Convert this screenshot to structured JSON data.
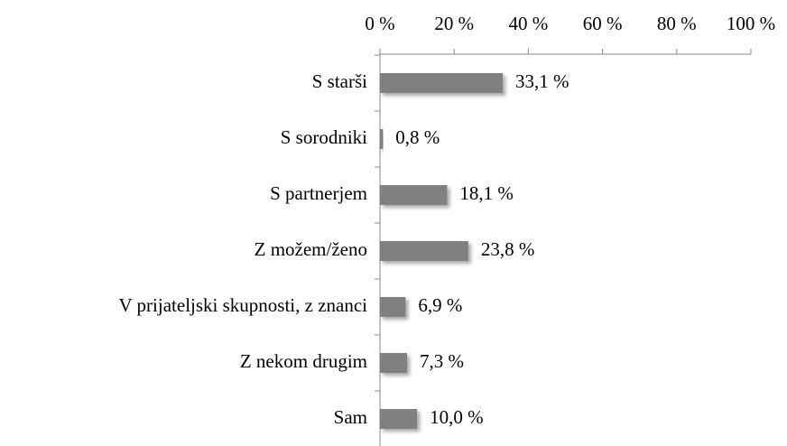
{
  "chart_data": {
    "type": "bar",
    "orientation": "horizontal",
    "categories": [
      "S starši",
      "S sorodniki",
      "S partnerjem",
      "Z možem/ženo",
      "V prijateljski skupnosti, z znanci",
      "Z nekom drugim",
      "Sam"
    ],
    "values": [
      33.1,
      0.8,
      18.1,
      23.8,
      6.9,
      7.3,
      10.0
    ],
    "value_labels": [
      "33,1 %",
      "0,8 %",
      "18,1 %",
      "23,8 %",
      "6,9 %",
      "7,3 %",
      "10,0 %"
    ],
    "color": "#808080",
    "xlim": [
      0,
      100
    ],
    "xticks": [
      {
        "value": 0,
        "label": "0 %"
      },
      {
        "value": 20,
        "label": "20 %"
      },
      {
        "value": 40,
        "label": "40 %"
      },
      {
        "value": 60,
        "label": "60 %"
      },
      {
        "value": 80,
        "label": "80 %"
      },
      {
        "value": 100,
        "label": "100 %"
      }
    ]
  }
}
